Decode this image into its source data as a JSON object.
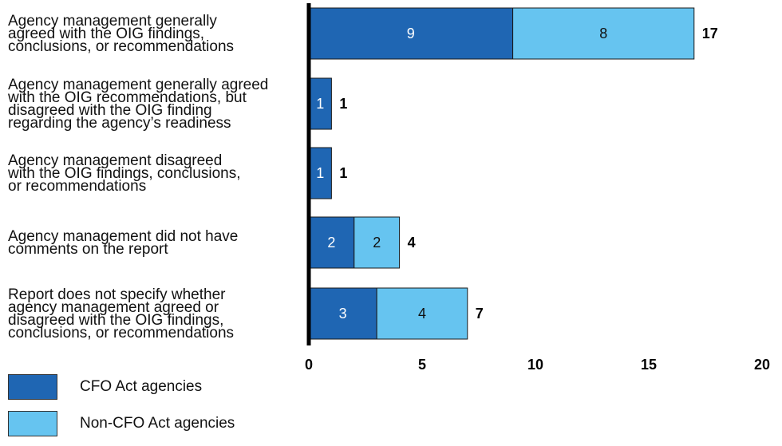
{
  "chart_data": {
    "type": "bar",
    "orientation": "horizontal",
    "stacked": true,
    "categories": [
      [
        "Agency management generally",
        "agreed with the OIG findings,",
        "conclusions, or recommendations"
      ],
      [
        "Agency management generally agreed",
        "with the OIG recommendations, but",
        "disagreed with the OIG finding",
        "regarding the agency’s readiness"
      ],
      [
        "Agency management disagreed",
        "with the OIG findings, conclusions,",
        "or recommendations"
      ],
      [
        "Agency management did not have",
        "comments on the report"
      ],
      [
        "Report does not specify whether",
        "agency management agreed or",
        "disagreed with the OIG findings,",
        "conclusions, or recommendations"
      ]
    ],
    "series": [
      {
        "name": "CFO Act agencies",
        "values": [
          9,
          1,
          1,
          2,
          3
        ],
        "color": "#1f66b3"
      },
      {
        "name": "Non-CFO Act agencies",
        "values": [
          8,
          0,
          0,
          2,
          4
        ],
        "color": "#66c4f0"
      }
    ],
    "totals": [
      "17",
      "1",
      "1",
      "4",
      "7"
    ],
    "x_ticks": [
      "0",
      "5",
      "10",
      "15",
      "20"
    ],
    "xlim": [
      0,
      20
    ],
    "grid": false,
    "legend_position": "bottom-left"
  },
  "legend": {
    "items": [
      {
        "label": "CFO Act agencies",
        "color": "#1f66b3"
      },
      {
        "label": "Non-CFO Act agencies",
        "color": "#66c4f0"
      }
    ]
  }
}
